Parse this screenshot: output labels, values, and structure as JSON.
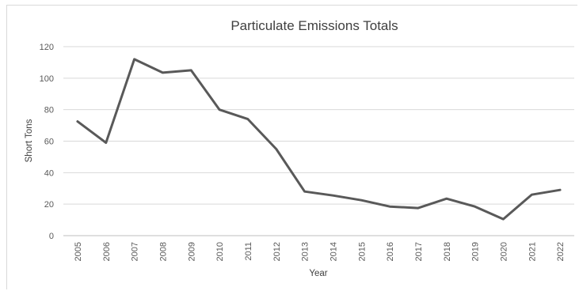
{
  "chart_data": {
    "type": "line",
    "title": "Particulate Emissions Totals",
    "xlabel": "Year",
    "ylabel": "Short Tons",
    "x": [
      "2005",
      "2006",
      "2007",
      "2008",
      "2009",
      "2010",
      "2011",
      "2012",
      "2013",
      "2014",
      "2015",
      "2016",
      "2017",
      "2018",
      "2019",
      "2020",
      "2021",
      "2022"
    ],
    "series": [
      {
        "values": [
          72.5,
          59,
          112,
          103.5,
          105,
          80,
          74,
          55,
          28,
          25.5,
          22.5,
          18.5,
          17.5,
          23.5,
          18.5,
          10.5,
          26,
          29
        ]
      }
    ],
    "yticks": [
      "0",
      "20",
      "40",
      "60",
      "80",
      "100",
      "120"
    ],
    "ylim": [
      0,
      120
    ],
    "grid": "horizontal",
    "legend": "none",
    "colors": {
      "line": "#595959",
      "grid": "#d9d9d9",
      "axis": "#bfbfbf"
    }
  }
}
